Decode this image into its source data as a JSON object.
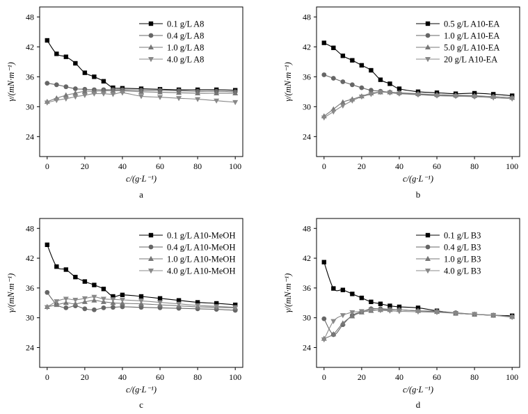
{
  "chart_data": [
    {
      "type": "line",
      "panel_label": "a",
      "xlabel": "c/(g·L⁻¹)",
      "ylabel": "γ/(mN·m⁻¹)",
      "x_ticks": [
        0,
        20,
        40,
        60,
        80,
        100
      ],
      "y_ticks": [
        24,
        30,
        36,
        42,
        48
      ],
      "xlim": [
        -4,
        104
      ],
      "ylim": [
        20,
        50
      ],
      "legend_position": "top-right",
      "grid": false,
      "series": [
        {
          "name": "0.1 g/L A8",
          "marker": "square",
          "color": "#000000",
          "x": [
            0,
            5,
            10,
            15,
            20,
            25,
            30,
            35,
            40,
            50,
            60,
            70,
            80,
            90,
            100
          ],
          "y": [
            43.3,
            40.6,
            40.0,
            38.7,
            36.8,
            36.0,
            35.1,
            33.8,
            33.7,
            33.6,
            33.5,
            33.4,
            33.4,
            33.4,
            33.3
          ]
        },
        {
          "name": "0.4 g/L A8",
          "marker": "circle",
          "color": "#666666",
          "x": [
            0,
            5,
            10,
            15,
            20,
            25,
            30,
            35,
            40,
            50,
            60,
            70,
            80,
            90,
            100
          ],
          "y": [
            34.7,
            34.4,
            34.0,
            33.6,
            33.5,
            33.4,
            33.4,
            33.4,
            33.4,
            33.3,
            33.3,
            33.2,
            33.1,
            33.1,
            33.0
          ]
        },
        {
          "name": "1.0 g/L A8",
          "marker": "triangle-up",
          "color": "#777777",
          "x": [
            0,
            5,
            10,
            15,
            20,
            25,
            30,
            35,
            40,
            50,
            60,
            70,
            80,
            90,
            100
          ],
          "y": [
            31.0,
            31.7,
            32.3,
            32.7,
            33.1,
            33.1,
            33.2,
            33.2,
            33.2,
            33.0,
            32.9,
            32.8,
            32.7,
            32.7,
            32.7
          ]
        },
        {
          "name": "4.0 g/L A8",
          "marker": "triangle-down",
          "color": "#888888",
          "x": [
            0,
            5,
            10,
            15,
            20,
            25,
            30,
            35,
            40,
            50,
            60,
            70,
            80,
            90,
            100
          ],
          "y": [
            30.8,
            31.3,
            31.6,
            32.0,
            32.3,
            32.6,
            32.6,
            32.5,
            32.8,
            32.1,
            31.9,
            31.7,
            31.5,
            31.2,
            30.9
          ]
        }
      ]
    },
    {
      "type": "line",
      "panel_label": "b",
      "xlabel": "c/(g·L⁻¹)",
      "ylabel": "γ/(mN·m⁻¹)",
      "x_ticks": [
        0,
        20,
        40,
        60,
        80,
        100
      ],
      "y_ticks": [
        24,
        30,
        36,
        42,
        48
      ],
      "xlim": [
        -4,
        104
      ],
      "ylim": [
        20,
        50
      ],
      "legend_position": "top-right",
      "grid": false,
      "series": [
        {
          "name": "0.5 g/L A10-EA",
          "marker": "square",
          "color": "#000000",
          "x": [
            0,
            5,
            10,
            15,
            20,
            25,
            30,
            35,
            40,
            50,
            60,
            70,
            80,
            90,
            100
          ],
          "y": [
            42.8,
            41.8,
            40.2,
            39.3,
            38.3,
            37.3,
            35.4,
            34.6,
            33.6,
            33.0,
            32.8,
            32.6,
            32.7,
            32.5,
            32.2
          ]
        },
        {
          "name": "1.0 g/L A10-EA",
          "marker": "circle",
          "color": "#666666",
          "x": [
            0,
            5,
            10,
            15,
            20,
            25,
            30,
            35,
            40,
            50,
            60,
            70,
            80,
            90,
            100
          ],
          "y": [
            36.4,
            35.7,
            35.0,
            34.4,
            33.8,
            33.3,
            33.1,
            32.9,
            32.7,
            32.5,
            32.3,
            32.2,
            32.1,
            32.0,
            31.8
          ]
        },
        {
          "name": "5.0 g/L A10-EA",
          "marker": "triangle-up",
          "color": "#777777",
          "x": [
            0,
            5,
            10,
            15,
            20,
            25,
            30,
            35,
            40,
            50,
            60,
            70,
            80,
            90,
            100
          ],
          "y": [
            28.1,
            29.5,
            30.9,
            31.5,
            32.1,
            32.7,
            32.9,
            32.9,
            32.8,
            32.6,
            32.4,
            32.3,
            32.2,
            32.0,
            31.8
          ]
        },
        {
          "name": "20  g/L A10-EA",
          "marker": "triangle-down",
          "color": "#888888",
          "x": [
            0,
            5,
            10,
            15,
            20,
            25,
            30,
            35,
            40,
            50,
            60,
            70,
            80,
            90,
            100
          ],
          "y": [
            27.8,
            29.0,
            30.2,
            31.2,
            32.0,
            32.5,
            32.9,
            32.8,
            32.6,
            32.4,
            32.2,
            32.1,
            32.0,
            31.8,
            31.6
          ]
        }
      ]
    },
    {
      "type": "line",
      "panel_label": "c",
      "xlabel": "c/(g·L⁻¹)",
      "ylabel": "γ/(mN·m⁻¹)",
      "x_ticks": [
        0,
        20,
        40,
        60,
        80,
        100
      ],
      "y_ticks": [
        24,
        30,
        36,
        42,
        48
      ],
      "xlim": [
        -4,
        104
      ],
      "ylim": [
        20,
        50
      ],
      "legend_position": "top-right",
      "grid": false,
      "series": [
        {
          "name": "0.1 g/L A10-MeOH",
          "marker": "square",
          "color": "#000000",
          "x": [
            0,
            5,
            10,
            15,
            20,
            25,
            30,
            35,
            40,
            50,
            60,
            70,
            80,
            90,
            100
          ],
          "y": [
            44.7,
            40.3,
            39.7,
            38.2,
            37.3,
            36.6,
            35.8,
            34.3,
            34.6,
            34.3,
            33.9,
            33.5,
            33.1,
            32.9,
            32.6
          ]
        },
        {
          "name": "0.4 g/L A10-MeOH",
          "marker": "circle",
          "color": "#666666",
          "x": [
            0,
            5,
            10,
            15,
            20,
            25,
            30,
            35,
            40,
            50,
            60,
            70,
            80,
            90,
            100
          ],
          "y": [
            35.1,
            32.7,
            32.0,
            32.4,
            31.8,
            31.6,
            32.0,
            32.1,
            32.2,
            32.1,
            32.0,
            31.9,
            31.8,
            31.7,
            31.5
          ]
        },
        {
          "name": "1.0 g/L A10-MeOH",
          "marker": "triangle-up",
          "color": "#777777",
          "x": [
            0,
            5,
            10,
            15,
            20,
            25,
            30,
            35,
            40,
            50,
            60,
            70,
            80,
            90,
            100
          ],
          "y": [
            32.2,
            32.6,
            33.0,
            32.8,
            33.2,
            33.5,
            33.2,
            33.0,
            32.9,
            32.8,
            32.6,
            32.4,
            32.2,
            32.1,
            32.0
          ]
        },
        {
          "name": "4.0 g/L A10-MeOH",
          "marker": "triangle-down",
          "color": "#888888",
          "x": [
            0,
            5,
            10,
            15,
            20,
            25,
            30,
            35,
            40,
            50,
            60,
            70,
            80,
            90,
            100
          ],
          "y": [
            32.1,
            33.3,
            33.8,
            33.6,
            33.9,
            34.2,
            33.8,
            33.7,
            33.6,
            33.4,
            33.1,
            32.8,
            32.5,
            32.3,
            32.1
          ]
        }
      ]
    },
    {
      "type": "line",
      "panel_label": "d",
      "xlabel": "c/(g·L⁻¹)",
      "ylabel": "γ/(mN·m⁻¹)",
      "x_ticks": [
        0,
        20,
        40,
        60,
        80,
        100
      ],
      "y_ticks": [
        24,
        30,
        36,
        42,
        48
      ],
      "xlim": [
        -4,
        104
      ],
      "ylim": [
        20,
        50
      ],
      "legend_position": "top-right",
      "grid": false,
      "series": [
        {
          "name": "0.1 g/L B3",
          "marker": "square",
          "color": "#000000",
          "x": [
            0,
            5,
            10,
            15,
            20,
            25,
            30,
            35,
            40,
            50,
            60,
            70,
            80,
            90,
            100
          ],
          "y": [
            41.2,
            35.9,
            35.6,
            34.8,
            34.0,
            33.2,
            32.8,
            32.4,
            32.2,
            32.0,
            31.4,
            30.9,
            30.7,
            30.5,
            30.4
          ]
        },
        {
          "name": "0.4 g/L B3",
          "marker": "circle",
          "color": "#666666",
          "x": [
            0,
            5,
            10,
            15,
            20,
            25,
            30,
            35,
            40,
            50,
            60,
            70,
            80,
            90,
            100
          ],
          "y": [
            29.8,
            26.6,
            28.6,
            30.5,
            31.2,
            31.8,
            31.8,
            31.7,
            31.6,
            31.4,
            31.3,
            31.0,
            30.7,
            30.5,
            30.2
          ]
        },
        {
          "name": "1.0 g/L B3",
          "marker": "triangle-up",
          "color": "#777777",
          "x": [
            0,
            5,
            10,
            15,
            20,
            25,
            30,
            35,
            40,
            50,
            60,
            70,
            80,
            90,
            100
          ],
          "y": [
            25.8,
            26.7,
            28.9,
            30.3,
            31.1,
            31.4,
            31.6,
            31.6,
            31.6,
            31.4,
            31.2,
            30.9,
            30.7,
            30.5,
            30.2
          ]
        },
        {
          "name": "4.0 g/L B3",
          "marker": "triangle-down",
          "color": "#888888",
          "x": [
            0,
            5,
            10,
            15,
            20,
            25,
            30,
            35,
            40,
            50,
            60,
            70,
            80,
            90,
            100
          ],
          "y": [
            25.6,
            29.3,
            30.5,
            31.1,
            31.3,
            31.6,
            31.5,
            31.4,
            31.3,
            31.2,
            31.1,
            30.9,
            30.7,
            30.5,
            30.1
          ]
        }
      ]
    }
  ]
}
